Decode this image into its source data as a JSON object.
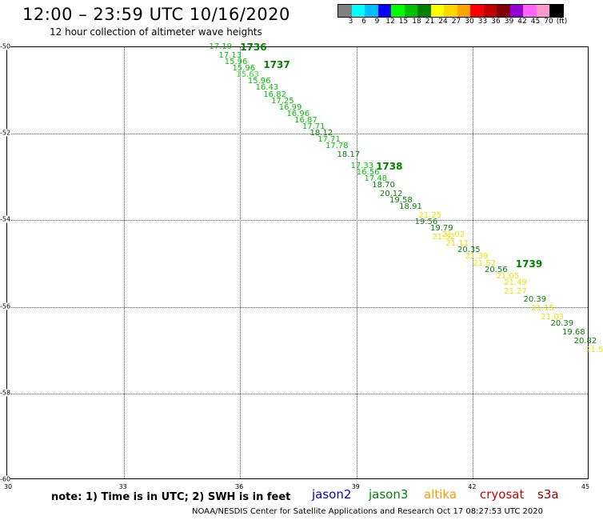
{
  "header": {
    "title": "12:00 – 23:59 UTC 10/16/2020",
    "subtitle": "12 hour collection of altimeter wave heights"
  },
  "colorbar": {
    "colors": [
      "#808080",
      "#00ffff",
      "#00bfff",
      "#0000ff",
      "#00ff00",
      "#00c000",
      "#008000",
      "#ffff00",
      "#ffd700",
      "#ffa500",
      "#ff0000",
      "#c00000",
      "#800000",
      "#9400d3",
      "#ff66ff",
      "#ff99cc",
      "#000000"
    ],
    "labels": [
      "3",
      "6",
      "9",
      "12",
      "15",
      "18",
      "21",
      "24",
      "27",
      "30",
      "33",
      "36",
      "39",
      "42",
      "45",
      "70",
      "(ft)"
    ]
  },
  "axes": {
    "x_ticks": [
      "30",
      "33",
      "36",
      "39",
      "42",
      "45"
    ],
    "y_ticks": [
      "-50",
      "-52",
      "-54",
      "-56",
      "-58",
      "-60"
    ],
    "xlim": [
      30,
      45
    ],
    "ylim": [
      -60,
      -50
    ]
  },
  "chart_data": {
    "type": "scatter",
    "passes": [
      {
        "label": "1736",
        "lon": 36.0,
        "lat": -50.0,
        "color": "#008000"
      },
      {
        "label": "1737",
        "lon": 36.6,
        "lat": -50.4,
        "color": "#008000"
      },
      {
        "label": "1738",
        "lon": 39.5,
        "lat": -52.75,
        "color": "#008000"
      },
      {
        "label": "1739",
        "lon": 43.1,
        "lat": -55.0,
        "color": "#008000"
      }
    ],
    "points": [
      {
        "lon": 35.2,
        "lat": -50.0,
        "v": "17.19",
        "color": "#00c000"
      },
      {
        "lon": 35.45,
        "lat": -50.2,
        "v": "17.13",
        "color": "#00c000"
      },
      {
        "lon": 35.6,
        "lat": -50.35,
        "v": "15.96",
        "color": "#00c000"
      },
      {
        "lon": 35.8,
        "lat": -50.5,
        "v": "15.96",
        "color": "#00c000"
      },
      {
        "lon": 35.9,
        "lat": -50.65,
        "v": "15.63",
        "color": "#33dd33"
      },
      {
        "lon": 36.2,
        "lat": -50.8,
        "v": "15.96",
        "color": "#00c000"
      },
      {
        "lon": 36.4,
        "lat": -50.95,
        "v": "16.43",
        "color": "#00c000"
      },
      {
        "lon": 36.6,
        "lat": -51.1,
        "v": "16.82",
        "color": "#00c000"
      },
      {
        "lon": 36.8,
        "lat": -51.25,
        "v": "17.25",
        "color": "#00c000"
      },
      {
        "lon": 37.0,
        "lat": -51.4,
        "v": "16.99",
        "color": "#00c000"
      },
      {
        "lon": 37.2,
        "lat": -51.55,
        "v": "16.96",
        "color": "#00c000"
      },
      {
        "lon": 37.4,
        "lat": -51.7,
        "v": "16.87",
        "color": "#00c000"
      },
      {
        "lon": 37.6,
        "lat": -51.85,
        "v": "17.71",
        "color": "#00c000"
      },
      {
        "lon": 37.8,
        "lat": -52.0,
        "v": "18.12",
        "color": "#008000"
      },
      {
        "lon": 38.0,
        "lat": -52.15,
        "v": "17.71",
        "color": "#00c000"
      },
      {
        "lon": 38.2,
        "lat": -52.3,
        "v": "17.78",
        "color": "#00c000"
      },
      {
        "lon": 38.5,
        "lat": -52.5,
        "v": "18.17",
        "color": "#008000"
      },
      {
        "lon": 38.85,
        "lat": -52.75,
        "v": "17.33",
        "color": "#00c000"
      },
      {
        "lon": 39.0,
        "lat": -52.9,
        "v": "16.56",
        "color": "#00c000"
      },
      {
        "lon": 39.2,
        "lat": -53.05,
        "v": "17.48",
        "color": "#00c000"
      },
      {
        "lon": 39.4,
        "lat": -53.2,
        "v": "18.70",
        "color": "#008000"
      },
      {
        "lon": 39.6,
        "lat": -53.4,
        "v": "20.12",
        "color": "#008000"
      },
      {
        "lon": 39.85,
        "lat": -53.55,
        "v": "19.58",
        "color": "#008000"
      },
      {
        "lon": 40.1,
        "lat": -53.7,
        "v": "18.91",
        "color": "#008000"
      },
      {
        "lon": 40.6,
        "lat": -53.9,
        "v": "21.25",
        "color": "#f0e000"
      },
      {
        "lon": 40.5,
        "lat": -54.05,
        "v": "19.56",
        "color": "#008000"
      },
      {
        "lon": 40.9,
        "lat": -54.2,
        "v": "19.79",
        "color": "#008000"
      },
      {
        "lon": 41.2,
        "lat": -54.35,
        "v": "21.02",
        "color": "#f0e000"
      },
      {
        "lon": 40.95,
        "lat": -54.4,
        "v": "21.52",
        "color": "#f0e000"
      },
      {
        "lon": 41.3,
        "lat": -54.55,
        "v": "21.11",
        "color": "#f0e000"
      },
      {
        "lon": 41.6,
        "lat": -54.7,
        "v": "20.35",
        "color": "#008000"
      },
      {
        "lon": 41.8,
        "lat": -54.85,
        "v": "21.39",
        "color": "#f0e000"
      },
      {
        "lon": 42.0,
        "lat": -55.0,
        "v": "21.52",
        "color": "#f0e000"
      },
      {
        "lon": 42.3,
        "lat": -55.15,
        "v": "20.56",
        "color": "#008000"
      },
      {
        "lon": 42.6,
        "lat": -55.3,
        "v": "21.05",
        "color": "#f0e000"
      },
      {
        "lon": 42.8,
        "lat": -55.45,
        "v": "21.49",
        "color": "#f0e000"
      },
      {
        "lon": 42.8,
        "lat": -55.65,
        "v": "21.27",
        "color": "#f0e000"
      },
      {
        "lon": 43.3,
        "lat": -55.85,
        "v": "20.39",
        "color": "#008000"
      },
      {
        "lon": 43.5,
        "lat": -56.05,
        "v": "21.15",
        "color": "#f0e000"
      },
      {
        "lon": 43.75,
        "lat": -56.25,
        "v": "21.03",
        "color": "#f0e000"
      },
      {
        "lon": 44.0,
        "lat": -56.4,
        "v": "20.39",
        "color": "#008000"
      },
      {
        "lon": 44.3,
        "lat": -56.6,
        "v": "19.68",
        "color": "#008000"
      },
      {
        "lon": 44.6,
        "lat": -56.8,
        "v": "20.82",
        "color": "#008000"
      },
      {
        "lon": 44.9,
        "lat": -57.0,
        "v": "21.5",
        "color": "#f0e000"
      }
    ]
  },
  "footer": {
    "note": "note: 1) Time is in UTC; 2) SWH is in feet",
    "satellites": [
      {
        "name": "jason2",
        "color": "#0000cc"
      },
      {
        "name": "jason3",
        "color": "#008000"
      },
      {
        "name": "altika",
        "color": "#ff9900"
      },
      {
        "name": "cryosat",
        "color": "#cc0000"
      },
      {
        "name": "s3a",
        "color": "#8b0000"
      }
    ],
    "credit": "NOAA/NESDIS Center for Satellite Applications and Research     Oct 17 08:27:53 UTC 2020"
  }
}
